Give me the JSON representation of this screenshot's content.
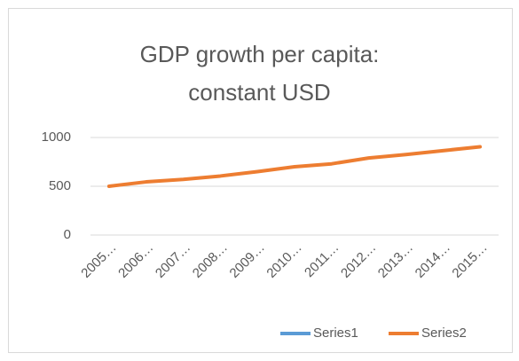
{
  "chart_data": {
    "type": "line",
    "title": "GDP growth per capita: constant USD",
    "categories": [
      "2005…",
      "2006…",
      "2007…",
      "2008…",
      "2009…",
      "2010…",
      "2011…",
      "2012…",
      "2013…",
      "2014…",
      "2015…"
    ],
    "series": [
      {
        "name": "Series1",
        "color": "#5b9bd5",
        "values": [
          null,
          null,
          null,
          null,
          null,
          null,
          null,
          null,
          null,
          null,
          null
        ]
      },
      {
        "name": "Series2",
        "color": "#ed7d31",
        "values": [
          500,
          545,
          570,
          605,
          650,
          700,
          730,
          790,
          825,
          865,
          905
        ]
      }
    ],
    "ylim": [
      0,
      1000
    ],
    "yticks": [
      0,
      500,
      1000
    ],
    "grid": true,
    "legend": "bottom"
  }
}
